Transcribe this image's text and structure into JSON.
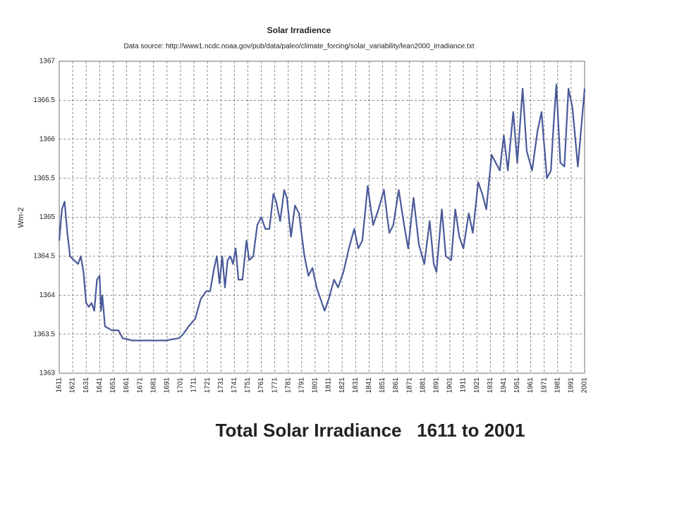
{
  "chart_data": {
    "type": "line",
    "title": "Solar Irradience",
    "subtitle": "Data source: http://www1.ncdc.noaa.gov/pub/data/paleo/climate_forcing/solar_variability/lean2000_irradiance.txt",
    "y_label": "Wm-2",
    "caption": "Total Solar Irradiance   1611 to 2001",
    "xlim": [
      1611,
      2001
    ],
    "ylim": [
      1363,
      1367
    ],
    "xticks": [
      1611,
      1621,
      1631,
      1641,
      1651,
      1661,
      1671,
      1681,
      1691,
      1701,
      1711,
      1721,
      1731,
      1741,
      1751,
      1761,
      1771,
      1781,
      1791,
      1801,
      1811,
      1821,
      1831,
      1841,
      1851,
      1861,
      1871,
      1881,
      1891,
      1901,
      1911,
      1921,
      1931,
      1941,
      1951,
      1961,
      1971,
      1981,
      1991,
      2001
    ],
    "yticks": [
      1363,
      1363.5,
      1364,
      1364.5,
      1365,
      1365.5,
      1366,
      1366.5,
      1367
    ],
    "grid": true,
    "series": [
      {
        "color": "#4a5a9a",
        "x": [
          1611,
          1613,
          1615,
          1617,
          1619,
          1622,
          1625,
          1627,
          1629,
          1631,
          1633,
          1635,
          1637,
          1639,
          1641,
          1642,
          1643,
          1645,
          1650,
          1655,
          1658,
          1665,
          1680,
          1690,
          1700,
          1703,
          1707,
          1712,
          1716,
          1720,
          1723,
          1726,
          1728,
          1730,
          1732,
          1734,
          1736,
          1738,
          1740,
          1742,
          1744,
          1747,
          1750,
          1752,
          1755,
          1758,
          1761,
          1764,
          1767,
          1770,
          1772,
          1775,
          1778,
          1780,
          1783,
          1786,
          1789,
          1793,
          1796,
          1799,
          1802,
          1805,
          1808,
          1811,
          1815,
          1818,
          1822,
          1826,
          1830,
          1833,
          1836,
          1840,
          1844,
          1848,
          1852,
          1856,
          1859,
          1863,
          1867,
          1870,
          1874,
          1878,
          1882,
          1886,
          1889,
          1891,
          1895,
          1898,
          1902,
          1905,
          1908,
          1911,
          1915,
          1918,
          1922,
          1925,
          1928,
          1932,
          1935,
          1938,
          1941,
          1944,
          1948,
          1951,
          1955,
          1958,
          1962,
          1966,
          1969,
          1973,
          1976,
          1978,
          1980,
          1983,
          1986,
          1989,
          1992,
          1996,
          2001
        ],
        "values": [
          1364.7,
          1365.1,
          1365.2,
          1364.8,
          1364.5,
          1364.45,
          1364.4,
          1364.5,
          1364.3,
          1363.9,
          1363.85,
          1363.9,
          1363.8,
          1364.2,
          1364.25,
          1363.8,
          1364.0,
          1363.6,
          1363.55,
          1363.55,
          1363.45,
          1363.42,
          1363.42,
          1363.42,
          1363.45,
          1363.5,
          1363.6,
          1363.7,
          1363.95,
          1364.05,
          1364.05,
          1364.35,
          1364.5,
          1364.15,
          1364.5,
          1364.1,
          1364.45,
          1364.5,
          1364.4,
          1364.6,
          1364.2,
          1364.2,
          1364.7,
          1364.45,
          1364.5,
          1364.9,
          1365.0,
          1364.85,
          1364.85,
          1365.3,
          1365.2,
          1364.95,
          1365.35,
          1365.25,
          1364.75,
          1365.15,
          1365.05,
          1364.5,
          1364.25,
          1364.35,
          1364.1,
          1363.95,
          1363.8,
          1363.95,
          1364.2,
          1364.1,
          1364.3,
          1364.6,
          1364.85,
          1364.6,
          1364.7,
          1365.4,
          1364.9,
          1365.1,
          1365.35,
          1364.8,
          1364.9,
          1365.35,
          1364.9,
          1364.6,
          1365.25,
          1364.65,
          1364.4,
          1364.95,
          1364.4,
          1364.3,
          1365.1,
          1364.5,
          1364.45,
          1365.1,
          1364.75,
          1364.6,
          1365.05,
          1364.8,
          1365.45,
          1365.3,
          1365.1,
          1365.8,
          1365.7,
          1365.6,
          1366.05,
          1365.6,
          1366.35,
          1365.7,
          1366.65,
          1365.85,
          1365.6,
          1366.1,
          1366.35,
          1365.5,
          1365.6,
          1366.2,
          1366.7,
          1365.7,
          1365.65,
          1366.65,
          1366.4,
          1365.65,
          1366.65
        ]
      }
    ]
  }
}
